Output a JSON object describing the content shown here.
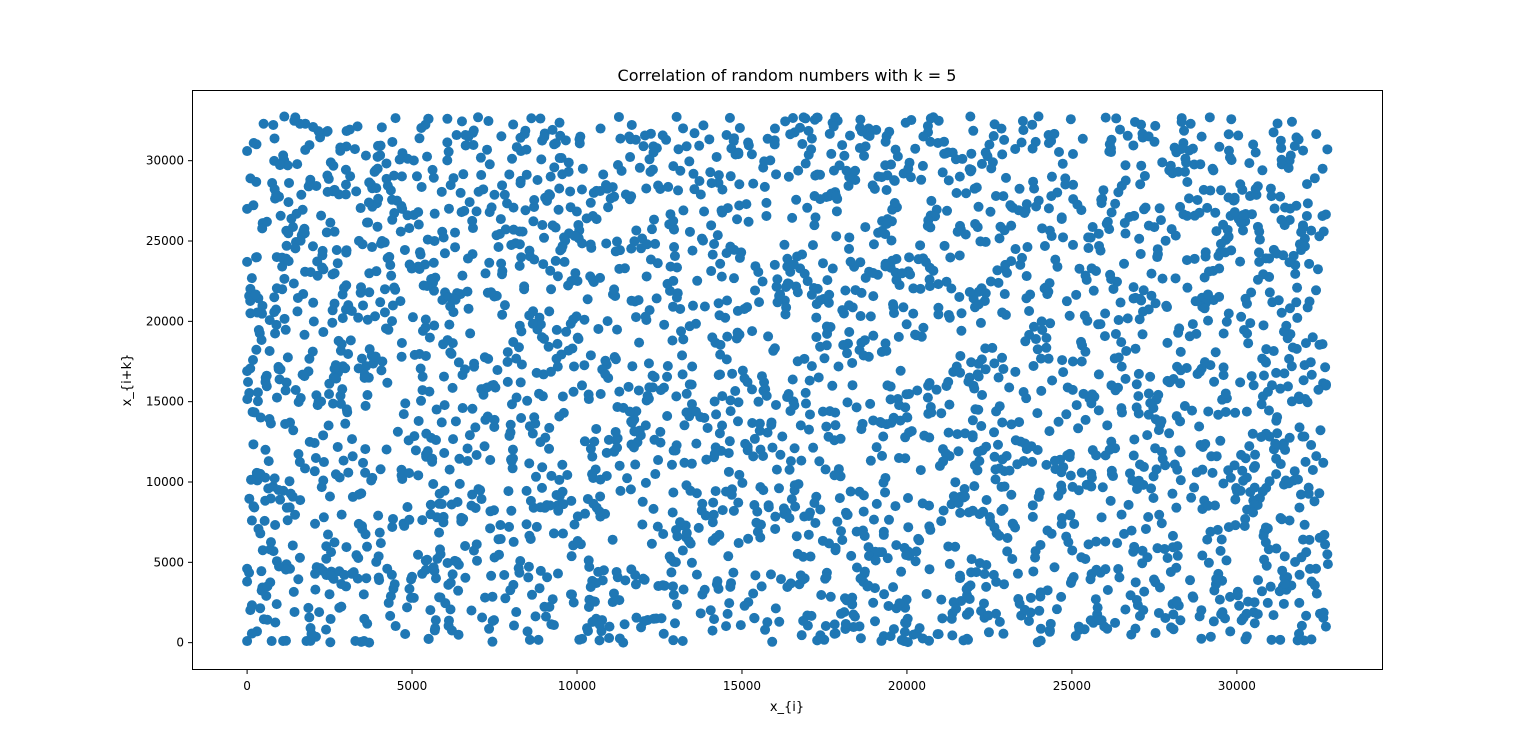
{
  "chart_data": {
    "type": "scatter",
    "title": "Correlation of random numbers with k = 5",
    "xlabel": "x_{i}",
    "ylabel": "x_{i+k}",
    "xlim": [
      -1640,
      34400
    ],
    "ylim": [
      -1640,
      34400
    ],
    "xticks": [
      0,
      5000,
      10000,
      15000,
      20000,
      25000,
      30000
    ],
    "xtick_labels": [
      "0",
      "5000",
      "10000",
      "15000",
      "20000",
      "25000",
      "30000"
    ],
    "yticks": [
      0,
      5000,
      10000,
      15000,
      20000,
      25000,
      30000
    ],
    "ytick_labels": [
      "0",
      "5000",
      "10000",
      "15000",
      "20000",
      "25000",
      "30000"
    ],
    "grid": false,
    "legend": "none",
    "marker_color": "#1f77b4",
    "series": [
      {
        "points_note_count": 3000,
        "x_range": [
          0,
          32767
        ],
        "y_range": [
          0,
          32767
        ],
        "points": [
          [
            0,
            16900
          ],
          [
            0,
            27000
          ],
          [
            0,
            30600
          ],
          [
            0,
            23700
          ],
          [
            0,
            4600
          ],
          [
            0,
            3800
          ],
          [
            0,
            100
          ],
          [
            100,
            28900
          ],
          [
            100,
            20500
          ],
          [
            200,
            31100
          ],
          [
            300,
            700
          ],
          [
            300,
            10500
          ],
          [
            400,
            6800
          ],
          [
            500,
            32300
          ],
          [
            600,
            26200
          ],
          [
            700,
            5800
          ],
          [
            900,
            24000
          ],
          [
            1000,
            8900
          ],
          [
            1100,
            30000
          ],
          [
            1300,
            4600
          ],
          [
            1500,
            26700
          ],
          [
            1700,
            21700
          ],
          [
            1800,
            100
          ],
          [
            2000,
            32100
          ],
          [
            2100,
            15400
          ],
          [
            2400,
            6000
          ],
          [
            2600,
            28100
          ],
          [
            2900,
            20200
          ],
          [
            3000,
            3500
          ],
          [
            3200,
            11600
          ],
          [
            3500,
            24800
          ],
          [
            3700,
            0
          ],
          [
            3900,
            29400
          ],
          [
            4100,
            17500
          ],
          [
            4400,
            7200
          ],
          [
            4700,
            27000
          ],
          [
            5000,
            4100
          ],
          [
            5200,
            13800
          ],
          [
            5500,
            32600
          ],
          [
            5700,
            900
          ],
          [
            6000,
            21800
          ],
          [
            6200,
            8600
          ],
          [
            6500,
            26800
          ],
          [
            6800,
            2000
          ],
          [
            7000,
            32700
          ],
          [
            7200,
            15800
          ],
          [
            7500,
            5300
          ],
          [
            7700,
            23600
          ],
          [
            8000,
            11400
          ],
          [
            8300,
            30600
          ],
          [
            8500,
            700
          ],
          [
            8800,
            19500
          ],
          [
            9000,
            25200
          ],
          [
            9300,
            6800
          ],
          [
            9600,
            14300
          ],
          [
            9900,
            2500
          ],
          [
            10100,
            31500
          ],
          [
            10400,
            22800
          ],
          [
            10700,
            9100
          ],
          [
            10900,
            17300
          ],
          [
            11200,
            4400
          ],
          [
            11400,
            0
          ],
          [
            11600,
            27600
          ],
          [
            11900,
            13200
          ],
          [
            12200,
            20700
          ],
          [
            12400,
            1500
          ],
          [
            12700,
            31300
          ],
          [
            12900,
            8100
          ],
          [
            13200,
            16700
          ],
          [
            13500,
            24400
          ],
          [
            13800,
            3000
          ],
          [
            14100,
            19000
          ],
          [
            14300,
            29100
          ],
          [
            14600,
            11800
          ],
          [
            14900,
            6200
          ],
          [
            15200,
            26200
          ],
          [
            15500,
            15000
          ],
          [
            15700,
            800
          ],
          [
            16000,
            32000
          ],
          [
            16300,
            21300
          ],
          [
            16600,
            9800
          ],
          [
            16900,
            4000
          ],
          [
            17200,
            27800
          ],
          [
            17500,
            17700
          ],
          [
            17800,
            12600
          ],
          [
            18100,
            1900
          ],
          [
            18400,
            23400
          ],
          [
            18700,
            30300
          ],
          [
            19000,
            24800
          ],
          [
            19300,
            6900
          ],
          [
            19600,
            14000
          ],
          [
            19900,
            29200
          ],
          [
            20200,
            500
          ],
          [
            20500,
            19600
          ],
          [
            20800,
            32700
          ],
          [
            21000,
            11000
          ],
          [
            21300,
            4900
          ],
          [
            21600,
            24100
          ],
          [
            21900,
            16500
          ],
          [
            22200,
            8000
          ],
          [
            22500,
            31000
          ],
          [
            22700,
            1800
          ],
          [
            23000,
            20400
          ],
          [
            23300,
            12600
          ],
          [
            23600,
            26900
          ],
          [
            23900,
            5700
          ],
          [
            24200,
            22100
          ],
          [
            24500,
            10800
          ],
          [
            24800,
            28900
          ],
          [
            25000,
            3900
          ],
          [
            25300,
            17500
          ],
          [
            25600,
            23300
          ],
          [
            25900,
            7800
          ],
          [
            26200,
            31300
          ],
          [
            26500,
            14600
          ],
          [
            26800,
            500
          ],
          [
            27100,
            21300
          ],
          [
            27400,
            9600
          ],
          [
            27700,
            26300
          ],
          [
            28000,
            4400
          ],
          [
            28300,
            18100
          ],
          [
            28600,
            32300
          ],
          [
            28900,
            12300
          ],
          [
            29200,
            6900
          ],
          [
            29500,
            24300
          ],
          [
            29800,
            700
          ],
          [
            30100,
            16200
          ],
          [
            30400,
            27800
          ],
          [
            30700,
            9000
          ],
          [
            31000,
            21800
          ],
          [
            31300,
            3200
          ],
          [
            31600,
            30000
          ],
          [
            31900,
            13400
          ],
          [
            32200,
            6400
          ],
          [
            32500,
            25300
          ],
          [
            32700,
            16000
          ],
          [
            32700,
            1000
          ],
          [
            32600,
            29500
          ],
          [
            32500,
            9300
          ],
          [
            32400,
            4600
          ]
        ]
      }
    ]
  }
}
